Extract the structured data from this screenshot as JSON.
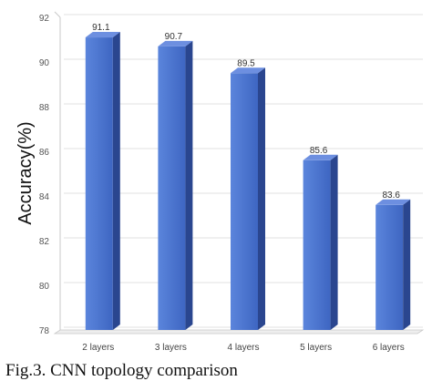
{
  "caption": "Fig.3. CNN topology comparison",
  "chart_data": {
    "type": "bar",
    "title": "",
    "xlabel": "",
    "ylabel": "Accuracy(%)",
    "categories": [
      "2 layers",
      "3 layers",
      "4 layers",
      "5 layers",
      "6 layers"
    ],
    "values": [
      91.1,
      90.7,
      89.5,
      85.6,
      83.6
    ],
    "data_labels": [
      "91.1",
      "90.7",
      "89.5",
      "85.6",
      "83.6"
    ],
    "ylim": [
      78,
      92
    ],
    "yticks": [
      78,
      80,
      82,
      84,
      86,
      88,
      90,
      92
    ],
    "grid": true,
    "legend": "none",
    "style": "3d-column",
    "colors": {
      "bar_front": "#4a74cf",
      "bar_side": "#2a468f",
      "bar_top": "#6d8fe0",
      "grid": "#e0e0e0",
      "axis": "#c8c8c8"
    }
  }
}
